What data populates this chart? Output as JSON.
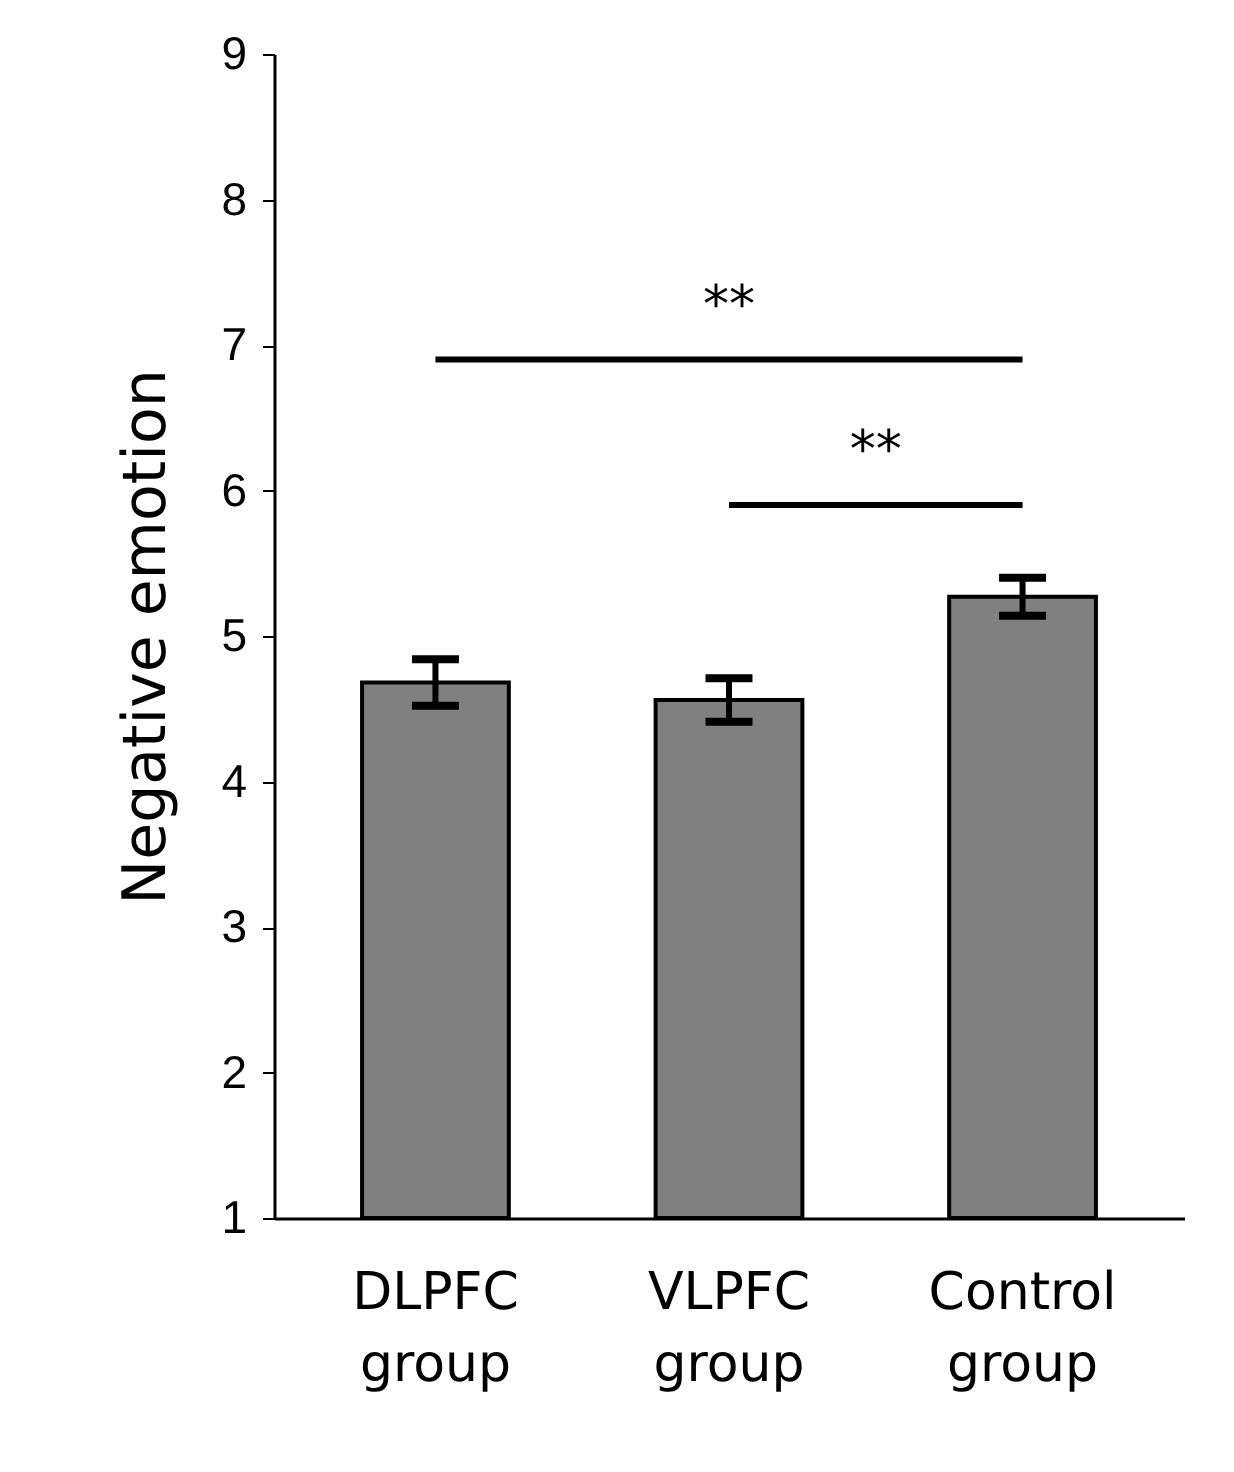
{
  "chart_data": {
    "type": "bar",
    "ylabel": "Negative emotion",
    "categories": [
      "DLPFC group",
      "VLPFC group",
      "Control group"
    ],
    "values": [
      4.68,
      4.56,
      5.27
    ],
    "errors": [
      0.16,
      0.15,
      0.13
    ],
    "color": "#808080",
    "ylim": [
      1,
      9
    ],
    "yticks": [
      1,
      2,
      3,
      4,
      5,
      6,
      7,
      8,
      9
    ],
    "grid": false,
    "annotations": [
      "**",
      "**"
    ]
  }
}
